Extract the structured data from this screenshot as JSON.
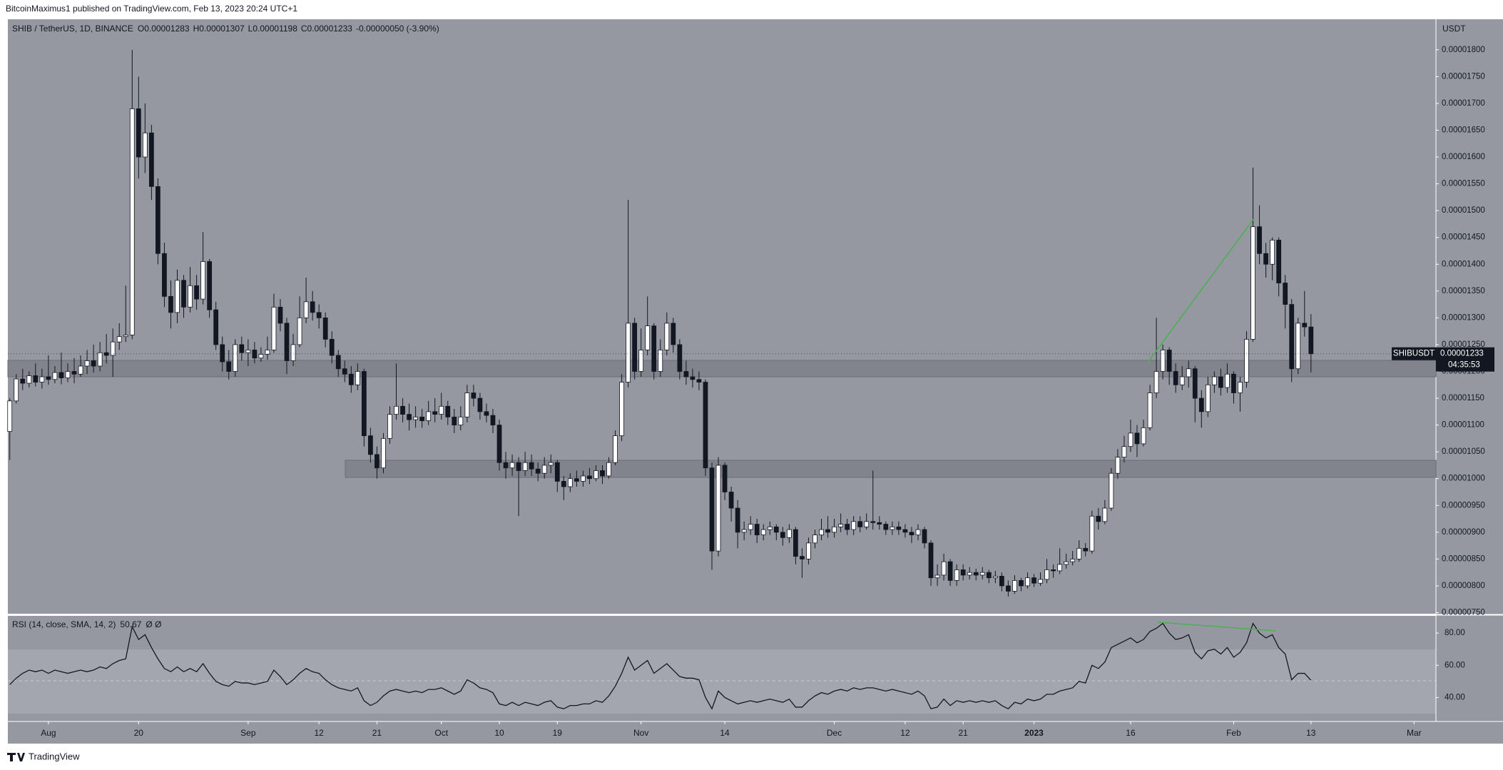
{
  "header": {
    "publisher": "BitcoinMaximus1 published on TradingView.com, Feb 13, 2023 20:24 UTC+1"
  },
  "chart_data": {
    "type": "candlestick",
    "symbol": "SHIB / TetherUS, 1D, BINANCE",
    "ohlc_letters": [
      "O",
      "H",
      "L",
      "C"
    ],
    "change": "-0.00000050 (-3.90%)",
    "currency": "USDT",
    "ticker": "SHIBUSDT",
    "countdown": "04:35:53",
    "up_color": "#ffffff",
    "down_color": "#131722",
    "open": [
      1.088e-05,
      1.145e-05,
      1.186e-05,
      1.178e-05,
      1.192e-05,
      1.18e-05,
      1.19e-05,
      1.185e-05,
      1.198e-05,
      1.188e-05,
      1.2e-05,
      1.195e-05,
      1.21e-05,
      1.22e-05,
      1.21e-05,
      1.235e-05,
      1.23e-05,
      1.255e-05,
      1.265e-05,
      1.268e-05,
      1.69e-05,
      1.6e-05,
      1.645e-05,
      1.545e-05,
      1.42e-05,
      1.34e-05,
      1.31e-05,
      1.37e-05,
      1.32e-05,
      1.36e-05,
      1.335e-05,
      1.405e-05,
      1.315e-05,
      1.25e-05,
      1.218e-05,
      1.2e-05,
      1.25e-05,
      1.235e-05,
      1.24e-05,
      1.225e-05,
      1.232e-05,
      1.24e-05,
      1.32e-05,
      1.29e-05,
      1.22e-05,
      1.25e-05,
      1.3e-05,
      1.33e-05,
      1.31e-05,
      1.3e-05,
      1.26e-05,
      1.23e-05,
      1.205e-05,
      1.195e-05,
      1.175e-05,
      1.2e-05,
      1.08e-05,
      1.045e-05,
      1.02e-05,
      1.075e-05,
      1.12e-05,
      1.135e-05,
      1.12e-05,
      1.11e-05,
      1.115e-05,
      1.108e-05,
      1.125e-05,
      1.12e-05,
      1.135e-05,
      1.115e-05,
      1.1e-05,
      1.115e-05,
      1.16e-05,
      1.15e-05,
      1.125e-05,
      1.118e-05,
      1.1e-05,
      1.03e-05,
      1.02e-05,
      1.03e-05,
      1.015e-05,
      1.03e-05,
      1.018e-05,
      1.01e-05,
      1.025e-05,
      1.03e-05,
      9.95e-06,
      9.85e-06,
      1e-05,
      9.95e-06,
      1.005e-05,
      1e-05,
      1.015e-05,
      1.005e-05,
      1.03e-05,
      1.08e-05,
      1.18e-05,
      1.29e-05,
      1.2e-05,
      1.24e-05,
      1.285e-05,
      1.2e-05,
      1.24e-05,
      1.29e-05,
      1.25e-05,
      1.2e-05,
      1.19e-05,
      1.185e-05,
      1.18e-05,
      1.02e-05,
      8.65e-06,
      1.025e-05,
      9.75e-06,
      9.45e-06,
      9e-06,
      9.05e-06,
      9.15e-06,
      8.95e-06,
      9.05e-06,
      9.1e-06,
      9e-06,
      8.9e-06,
      9.05e-06,
      8.55e-06,
      8.5e-06,
      8.8e-06,
      8.95e-06,
      9.05e-06,
      9e-06,
      9.1e-06,
      9.15e-06,
      9.05e-06,
      9.2e-06,
      9.1e-06,
      9.2e-06,
      9.18e-06,
      9.15e-06,
      9.05e-06,
      9.1e-06,
      9.05e-06,
      9e-06,
      8.95e-06,
      9.05e-06,
      8.8e-06,
      8.15e-06,
      8.2e-06,
      8.45e-06,
      8.1e-06,
      8.3e-06,
      8.2e-06,
      8.25e-06,
      8.2e-06,
      8.25e-06,
      8.15e-06,
      8.18e-06,
      8e-06,
      7.9e-06,
      8.1e-06,
      8e-06,
      8.15e-06,
      8.05e-06,
      8.12e-06,
      8.3e-06,
      8.28e-06,
      8.4e-06,
      8.45e-06,
      8.5e-06,
      8.7e-06,
      8.65e-06,
      9.3e-06,
      9.2e-06,
      9.45e-06,
      1.01e-05,
      1.04e-05,
      1.06e-05,
      1.085e-05,
      1.065e-05,
      1.095e-05,
      1.16e-05,
      1.2e-05,
      1.24e-05,
      1.2e-05,
      1.175e-05,
      1.19e-05,
      1.205e-05,
      1.15e-05,
      1.125e-05,
      1.175e-05,
      1.19e-05,
      1.17e-05,
      1.195e-05,
      1.16e-05,
      1.18e-05,
      1.26e-05,
      1.47e-05,
      1.42e-05,
      1.4e-05,
      1.445e-05,
      1.365e-05,
      1.325e-05,
      1.205e-05,
      1.29e-05,
      1.283e-05
    ],
    "high": [
      1.15e-05,
      1.195e-05,
      1.205e-05,
      1.2e-05,
      1.215e-05,
      1.205e-05,
      1.23e-05,
      1.21e-05,
      1.235e-05,
      1.215e-05,
      1.225e-05,
      1.23e-05,
      1.24e-05,
      1.25e-05,
      1.255e-05,
      1.27e-05,
      1.28e-05,
      1.29e-05,
      1.36e-05,
      1.8e-05,
      1.75e-05,
      1.7e-05,
      1.66e-05,
      1.56e-05,
      1.44e-05,
      1.37e-05,
      1.39e-05,
      1.38e-05,
      1.395e-05,
      1.38e-05,
      1.46e-05,
      1.41e-05,
      1.33e-05,
      1.265e-05,
      1.24e-05,
      1.26e-05,
      1.265e-05,
      1.26e-05,
      1.255e-05,
      1.245e-05,
      1.265e-05,
      1.345e-05,
      1.335e-05,
      1.3e-05,
      1.27e-05,
      1.34e-05,
      1.375e-05,
      1.35e-05,
      1.325e-05,
      1.31e-05,
      1.275e-05,
      1.24e-05,
      1.22e-05,
      1.21e-05,
      1.215e-05,
      1.205e-05,
      1.095e-05,
      1.06e-05,
      1.085e-05,
      1.135e-05,
      1.215e-05,
      1.15e-05,
      1.14e-05,
      1.135e-05,
      1.13e-05,
      1.145e-05,
      1.15e-05,
      1.16e-05,
      1.145e-05,
      1.13e-05,
      1.135e-05,
      1.175e-05,
      1.175e-05,
      1.16e-05,
      1.14e-05,
      1.13e-05,
      1.11e-05,
      1.05e-05,
      1.045e-05,
      1.04e-05,
      1.05e-05,
      1.045e-05,
      1.03e-05,
      1.04e-05,
      1.045e-05,
      1.035e-05,
      1.005e-05,
      1.01e-05,
      1.015e-05,
      1.015e-05,
      1.02e-05,
      1.025e-05,
      1.025e-05,
      1.04e-05,
      1.09e-05,
      1.195e-05,
      1.52e-05,
      1.3e-05,
      1.28e-05,
      1.34e-05,
      1.29e-05,
      1.26e-05,
      1.31e-05,
      1.3e-05,
      1.26e-05,
      1.22e-05,
      1.205e-05,
      1.2e-05,
      1.185e-05,
      1.03e-05,
      1.04e-05,
      1.03e-05,
      9.85e-06,
      9.6e-06,
      9.2e-06,
      9.3e-06,
      9.25e-06,
      9.15e-06,
      9.2e-06,
      9.15e-06,
      9.1e-06,
      9.15e-06,
      9.1e-06,
      8.7e-06,
      8.9e-06,
      9.05e-06,
      9.25e-06,
      9.3e-06,
      9.25e-06,
      9.35e-06,
      9.25e-06,
      9.3e-06,
      9.3e-06,
      9.35e-06,
      1.015e-05,
      9.3e-06,
      9.2e-06,
      9.2e-06,
      9.2e-06,
      9.15e-06,
      9.1e-06,
      9.15e-06,
      9.1e-06,
      8.85e-06,
      8.4e-06,
      8.6e-06,
      8.5e-06,
      8.4e-06,
      8.4e-06,
      8.35e-06,
      8.32e-06,
      8.35e-06,
      8.3e-06,
      8.28e-06,
      8.25e-06,
      8.1e-06,
      8.2e-06,
      8.15e-06,
      8.25e-06,
      8.22e-06,
      8.25e-06,
      8.5e-06,
      8.4e-06,
      8.7e-06,
      8.6e-06,
      8.65e-06,
      8.85e-06,
      8.8e-06,
      9.4e-06,
      9.45e-06,
      9.6e-06,
      1.02e-05,
      1.055e-05,
      1.08e-05,
      1.11e-05,
      1.1e-05,
      1.11e-05,
      1.175e-05,
      1.3e-05,
      1.25e-05,
      1.245e-05,
      1.215e-05,
      1.21e-05,
      1.22e-05,
      1.21e-05,
      1.165e-05,
      1.19e-05,
      1.2e-05,
      1.205e-05,
      1.215e-05,
      1.2e-05,
      1.19e-05,
      1.275e-05,
      1.58e-05,
      1.51e-05,
      1.44e-05,
      1.45e-05,
      1.45e-05,
      1.38e-05,
      1.335e-05,
      1.3e-05,
      1.35e-05,
      1.307e-05
    ],
    "low": [
      1.035e-05,
      1.14e-05,
      1.165e-05,
      1.17e-05,
      1.172e-05,
      1.168e-05,
      1.175e-05,
      1.178e-05,
      1.176e-05,
      1.18e-05,
      1.178e-05,
      1.19e-05,
      1.195e-05,
      1.198e-05,
      1.2e-05,
      1.215e-05,
      1.19e-05,
      1.24e-05,
      1.255e-05,
      1.26e-05,
      1.56e-05,
      1.57e-05,
      1.52e-05,
      1.4e-05,
      1.32e-05,
      1.28e-05,
      1.29e-05,
      1.3e-05,
      1.31e-05,
      1.315e-05,
      1.325e-05,
      1.3e-05,
      1.24e-05,
      1.2e-05,
      1.185e-05,
      1.19e-05,
      1.22e-05,
      1.21e-05,
      1.215e-05,
      1.218e-05,
      1.222e-05,
      1.235e-05,
      1.275e-05,
      1.195e-05,
      1.21e-05,
      1.245e-05,
      1.29e-05,
      1.295e-05,
      1.28e-05,
      1.245e-05,
      1.215e-05,
      1.19e-05,
      1.18e-05,
      1.16e-05,
      1.165e-05,
      1.06e-05,
      1.03e-05,
      1e-05,
      1.01e-05,
      1.065e-05,
      1.11e-05,
      1.105e-05,
      1.09e-05,
      1.095e-05,
      1.095e-05,
      1.1e-05,
      1.105e-05,
      1.11e-05,
      1.1e-05,
      1.085e-05,
      1.09e-05,
      1.105e-05,
      1.135e-05,
      1.11e-05,
      1.105e-05,
      1.085e-05,
      1.015e-05,
      1e-05,
      1.005e-05,
      9.3e-06,
      1.005e-05,
      1.005e-05,
      9.95e-06,
      1e-05,
      1.01e-05,
      9.75e-06,
      9.6e-06,
      9.75e-06,
      9.85e-06,
      9.85e-06,
      9.9e-06,
      9.95e-06,
      9.9e-06,
      1e-05,
      1.025e-05,
      1.07e-05,
      1.17e-05,
      1.185e-05,
      1.19e-05,
      1.23e-05,
      1.185e-05,
      1.19e-05,
      1.23e-05,
      1.235e-05,
      1.185e-05,
      1.175e-05,
      1.17e-05,
      1.165e-05,
      1.005e-05,
      8.3e-06,
      8.55e-06,
      9.6e-06,
      9.2e-06,
      8.7e-06,
      8.85e-06,
      8.95e-06,
      8.8e-06,
      8.85e-06,
      8.95e-06,
      8.85e-06,
      8.75e-06,
      8.8e-06,
      8.4e-06,
      8.15e-06,
      8.4e-06,
      8.7e-06,
      8.85e-06,
      8.9e-06,
      8.9e-06,
      9e-06,
      8.95e-06,
      8.95e-06,
      9e-06,
      9.05e-06,
      9.05e-06,
      9.05e-06,
      8.95e-06,
      8.95e-06,
      8.95e-06,
      8.9e-06,
      8.8e-06,
      8.85e-06,
      8.7e-06,
      8e-06,
      8e-06,
      8.1e-06,
      8e-06,
      8e-06,
      8.1e-06,
      8.12e-06,
      8.1e-06,
      8.12e-06,
      8.05e-06,
      8.05e-06,
      7.9e-06,
      7.8e-06,
      7.85e-06,
      7.9e-06,
      7.95e-06,
      7.98e-06,
      8e-06,
      8.05e-06,
      8.15e-06,
      8.22e-06,
      8.32e-06,
      8.38e-06,
      8.45e-06,
      8.55e-06,
      8.6e-06,
      9.05e-06,
      9.15e-06,
      9.4e-06,
      1e-05,
      1.03e-05,
      1.05e-05,
      1.04e-05,
      1.06e-05,
      1.09e-05,
      1.15e-05,
      1.185e-05,
      1.175e-05,
      1.16e-05,
      1.165e-05,
      1.17e-05,
      1.105e-05,
      1.095e-05,
      1.115e-05,
      1.16e-05,
      1.155e-05,
      1.16e-05,
      1.14e-05,
      1.125e-05,
      1.17e-05,
      1.255e-05,
      1.4e-05,
      1.375e-05,
      1.37e-05,
      1.34e-05,
      1.28e-05,
      1.18e-05,
      1.195e-05,
      1.265e-05,
      1.198e-05
    ],
    "close": [
      1.145e-05,
      1.186e-05,
      1.178e-05,
      1.192e-05,
      1.18e-05,
      1.19e-05,
      1.185e-05,
      1.198e-05,
      1.188e-05,
      1.2e-05,
      1.195e-05,
      1.21e-05,
      1.22e-05,
      1.21e-05,
      1.235e-05,
      1.23e-05,
      1.255e-05,
      1.265e-05,
      1.268e-05,
      1.69e-05,
      1.6e-05,
      1.645e-05,
      1.545e-05,
      1.42e-05,
      1.34e-05,
      1.31e-05,
      1.37e-05,
      1.32e-05,
      1.36e-05,
      1.335e-05,
      1.405e-05,
      1.315e-05,
      1.25e-05,
      1.218e-05,
      1.2e-05,
      1.25e-05,
      1.235e-05,
      1.24e-05,
      1.225e-05,
      1.232e-05,
      1.24e-05,
      1.32e-05,
      1.29e-05,
      1.22e-05,
      1.25e-05,
      1.3e-05,
      1.33e-05,
      1.31e-05,
      1.3e-05,
      1.26e-05,
      1.23e-05,
      1.205e-05,
      1.195e-05,
      1.175e-05,
      1.2e-05,
      1.08e-05,
      1.045e-05,
      1.02e-05,
      1.075e-05,
      1.12e-05,
      1.135e-05,
      1.12e-05,
      1.11e-05,
      1.115e-05,
      1.108e-05,
      1.125e-05,
      1.12e-05,
      1.135e-05,
      1.115e-05,
      1.1e-05,
      1.115e-05,
      1.16e-05,
      1.15e-05,
      1.125e-05,
      1.118e-05,
      1.1e-05,
      1.03e-05,
      1.02e-05,
      1.03e-05,
      1.015e-05,
      1.03e-05,
      1.018e-05,
      1.01e-05,
      1.025e-05,
      1.03e-05,
      9.95e-06,
      9.85e-06,
      1e-05,
      9.95e-06,
      1.005e-05,
      1e-05,
      1.015e-05,
      1.005e-05,
      1.03e-05,
      1.08e-05,
      1.18e-05,
      1.29e-05,
      1.2e-05,
      1.24e-05,
      1.285e-05,
      1.2e-05,
      1.24e-05,
      1.29e-05,
      1.25e-05,
      1.2e-05,
      1.19e-05,
      1.185e-05,
      1.18e-05,
      1.02e-05,
      8.65e-06,
      1.025e-05,
      9.75e-06,
      9.45e-06,
      9e-06,
      9.05e-06,
      9.15e-06,
      8.95e-06,
      9.05e-06,
      9.1e-06,
      9e-06,
      8.9e-06,
      9.05e-06,
      8.55e-06,
      8.5e-06,
      8.8e-06,
      8.95e-06,
      9.05e-06,
      9e-06,
      9.1e-06,
      9.15e-06,
      9.05e-06,
      9.2e-06,
      9.1e-06,
      9.2e-06,
      9.18e-06,
      9.15e-06,
      9.05e-06,
      9.1e-06,
      9.05e-06,
      9e-06,
      8.95e-06,
      9.05e-06,
      8.8e-06,
      8.15e-06,
      8.2e-06,
      8.45e-06,
      8.1e-06,
      8.3e-06,
      8.2e-06,
      8.25e-06,
      8.2e-06,
      8.25e-06,
      8.15e-06,
      8.18e-06,
      8e-06,
      7.9e-06,
      8.1e-06,
      8e-06,
      8.15e-06,
      8.05e-06,
      8.12e-06,
      8.3e-06,
      8.28e-06,
      8.4e-06,
      8.45e-06,
      8.5e-06,
      8.7e-06,
      8.65e-06,
      9.3e-06,
      9.2e-06,
      9.45e-06,
      1.01e-05,
      1.04e-05,
      1.06e-05,
      1.085e-05,
      1.065e-05,
      1.095e-05,
      1.16e-05,
      1.2e-05,
      1.24e-05,
      1.2e-05,
      1.175e-05,
      1.19e-05,
      1.205e-05,
      1.15e-05,
      1.125e-05,
      1.175e-05,
      1.19e-05,
      1.17e-05,
      1.195e-05,
      1.16e-05,
      1.18e-05,
      1.26e-05,
      1.47e-05,
      1.42e-05,
      1.4e-05,
      1.445e-05,
      1.365e-05,
      1.325e-05,
      1.205e-05,
      1.29e-05,
      1.283e-05,
      1.233e-05
    ],
    "xlim": [
      -0.3,
      221.4
    ],
    "xticks": [
      {
        "value": 6,
        "label": "Aug"
      },
      20,
      {
        "value": 37,
        "label": "Sep"
      },
      {
        "value": 48,
        "label": "12"
      },
      {
        "value": 57,
        "label": "21"
      },
      {
        "value": 67,
        "label": "Oct"
      },
      {
        "value": 76,
        "label": "10"
      },
      {
        "value": 85,
        "label": "19"
      },
      {
        "value": 98,
        "label": "Nov"
      },
      {
        "value": 111,
        "label": "14"
      },
      {
        "value": 128,
        "label": "Dec"
      },
      {
        "value": 139,
        "label": "12"
      },
      {
        "value": 148,
        "label": "21"
      },
      {
        "value": 159,
        "label": "2023"
      },
      {
        "value": 174,
        "label": "16"
      },
      {
        "value": 190,
        "label": "Feb"
      },
      {
        "value": 202,
        "label": "13"
      },
      {
        "value": 218,
        "label": "Mar"
      }
    ],
    "ylim": [
      7.48e-06,
      1.857e-05
    ],
    "yticks": [
      {
        "value": 7.5e-06,
        "label": "0.00000750"
      },
      {
        "value": 8e-06,
        "label": "0.00000800"
      },
      {
        "value": 8.5e-06,
        "label": "0.00000850"
      },
      {
        "value": 9e-06,
        "label": "0.00000900"
      },
      {
        "value": 9.5e-06,
        "label": "0.00000950"
      },
      {
        "value": 1e-05,
        "label": "0.00001000"
      },
      {
        "value": 1.05e-05,
        "label": "0.00001050"
      },
      {
        "value": 1.1e-05,
        "label": "0.00001100"
      },
      {
        "value": 1.15e-05,
        "label": "0.00001150"
      },
      {
        "value": 1.2e-05,
        "label": "0.00001200"
      },
      {
        "value": 1.25e-05,
        "label": "0.00001250"
      },
      {
        "value": 1.3e-05,
        "label": "0.00001300"
      },
      {
        "value": 1.35e-05,
        "label": "0.00001350"
      },
      {
        "value": 1.4e-05,
        "label": "0.00001400"
      },
      {
        "value": 1.45e-05,
        "label": "0.00001450"
      },
      {
        "value": 1.5e-05,
        "label": "0.00001500"
      },
      {
        "value": 1.55e-05,
        "label": "0.00001550"
      },
      {
        "value": 1.6e-05,
        "label": "0.00001600"
      },
      {
        "value": 1.65e-05,
        "label": "0.00001650"
      },
      {
        "value": 1.7e-05,
        "label": "0.00001700"
      },
      {
        "value": 1.75e-05,
        "label": "0.00001750"
      },
      {
        "value": 1.8e-05,
        "label": "0.00001800"
      }
    ],
    "rsi": {
      "type": "line",
      "title": "RSI (14, close, SMA, 14, 2)",
      "extra": "Ø Ø",
      "color": "#131722",
      "values": [
        48,
        52,
        55,
        57,
        56,
        57,
        55,
        57,
        56,
        55,
        56,
        57,
        56,
        57,
        59,
        58,
        61,
        63,
        64,
        84,
        76,
        79,
        71,
        64,
        58,
        56,
        59,
        56,
        58,
        56,
        61,
        55,
        50,
        48,
        47,
        50,
        49,
        49,
        48,
        49,
        50,
        57,
        53,
        48,
        51,
        55,
        58,
        56,
        55,
        51,
        48,
        46,
        45,
        44,
        46,
        38,
        35,
        37,
        41,
        44,
        45,
        44,
        43,
        44,
        43,
        45,
        45,
        46,
        44,
        42,
        44,
        51,
        49,
        46,
        45,
        43,
        36,
        35,
        37,
        35,
        37,
        36,
        35,
        37,
        38,
        34,
        33,
        35,
        35,
        36,
        36,
        38,
        37,
        41,
        47,
        55,
        65,
        57,
        60,
        63,
        55,
        58,
        61,
        57,
        53,
        52,
        52,
        51,
        40,
        33,
        44,
        40,
        38,
        36,
        37,
        38,
        37,
        38,
        39,
        38,
        37,
        39,
        34,
        34,
        38,
        41,
        43,
        42,
        44,
        45,
        44,
        46,
        45,
        46,
        46,
        45,
        44,
        45,
        44,
        43,
        42,
        44,
        41,
        33,
        34,
        39,
        35,
        38,
        37,
        38,
        37,
        38,
        37,
        38,
        35,
        33,
        37,
        36,
        39,
        38,
        39,
        42,
        42,
        44,
        45,
        46,
        50,
        49,
        60,
        58,
        62,
        71,
        73,
        75,
        77,
        74,
        76,
        81,
        83,
        86,
        80,
        76,
        77,
        79,
        68,
        64,
        69,
        70,
        67,
        71,
        65,
        68,
        74,
        86,
        80,
        77,
        79,
        71,
        67,
        51,
        55,
        55,
        50.67
      ],
      "ylim": [
        25.1,
        90.7
      ],
      "yticks": [
        {
          "value": 40,
          "label": "40.00"
        },
        {
          "value": 60,
          "label": "60.00"
        },
        {
          "value": 80,
          "label": "80.00"
        }
      ]
    }
  },
  "footer": {
    "logo": "TradingView"
  }
}
